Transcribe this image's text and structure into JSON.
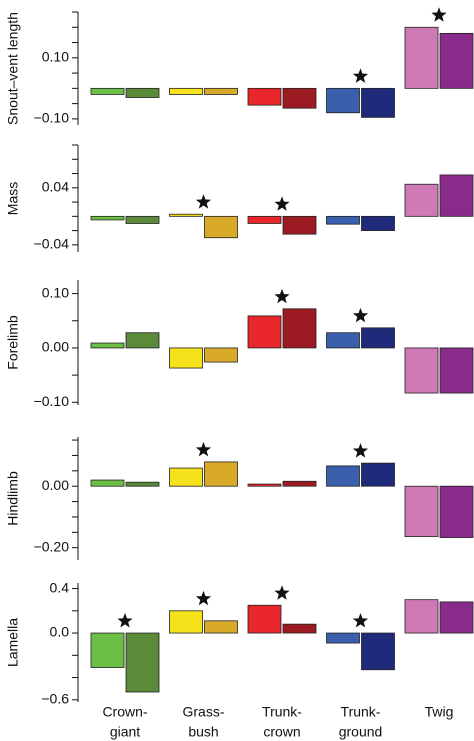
{
  "chart_data": [
    {
      "type": "bar",
      "ylabel": "Snout–vent length",
      "ylim": [
        -0.12,
        0.25
      ],
      "yticks": [
        {
          "value": -0.1,
          "label": "−0.10"
        },
        {
          "value": 0.1,
          "label": "0.10"
        }
      ],
      "yminor": [
        -0.05,
        0,
        0.05,
        0.15,
        0.2,
        0.25
      ],
      "significant": [
        false,
        false,
        false,
        true,
        true
      ],
      "series": [
        {
          "colors": [
            "#6cbf45",
            "#f5e21a",
            "#e8262b",
            "#3a5fad",
            "#cf7ab7"
          ],
          "values": [
            -0.02,
            -0.02,
            -0.055,
            -0.08,
            0.2
          ]
        },
        {
          "colors": [
            "#5a8a3a",
            "#d9a92a",
            "#9c1a22",
            "#1f2a7a",
            "#8a2a8a"
          ],
          "values": [
            -0.03,
            -0.02,
            -0.065,
            -0.095,
            0.18
          ]
        }
      ]
    },
    {
      "type": "bar",
      "ylabel": "Mass",
      "ylim": [
        -0.05,
        0.1
      ],
      "yticks": [
        {
          "value": -0.04,
          "label": "−0.04"
        },
        {
          "value": 0.04,
          "label": "0.04"
        }
      ],
      "yminor": [
        -0.02,
        0,
        0.02,
        0.06,
        0.08,
        0.1
      ],
      "significant": [
        false,
        true,
        true,
        false,
        false
      ],
      "series": [
        {
          "colors": [
            "#6cbf45",
            "#f5e21a",
            "#e8262b",
            "#3a5fad",
            "#cf7ab7"
          ],
          "values": [
            -0.005,
            0.003,
            -0.01,
            -0.011,
            0.045
          ]
        },
        {
          "colors": [
            "#5a8a3a",
            "#d9a92a",
            "#9c1a22",
            "#1f2a7a",
            "#8a2a8a"
          ],
          "values": [
            -0.01,
            -0.03,
            -0.025,
            -0.02,
            0.058
          ]
        }
      ]
    },
    {
      "type": "bar",
      "ylabel": "Forelimb",
      "ylim": [
        -0.105,
        0.125
      ],
      "yticks": [
        {
          "value": -0.1,
          "label": "−0.10"
        },
        {
          "value": 0,
          "label": "0.00"
        },
        {
          "value": 0.1,
          "label": "0.10"
        }
      ],
      "yminor": [
        -0.05,
        0.05
      ],
      "significant": [
        false,
        false,
        true,
        true,
        false
      ],
      "series": [
        {
          "colors": [
            "#6cbf45",
            "#f5e21a",
            "#e8262b",
            "#3a5fad",
            "#cf7ab7"
          ],
          "values": [
            0.009,
            -0.037,
            0.059,
            0.028,
            -0.083
          ]
        },
        {
          "colors": [
            "#5a8a3a",
            "#d9a92a",
            "#9c1a22",
            "#1f2a7a",
            "#8a2a8a"
          ],
          "values": [
            0.028,
            -0.026,
            0.072,
            0.037,
            -0.083
          ]
        }
      ]
    },
    {
      "type": "bar",
      "ylabel": "Hindlimb",
      "ylim": [
        -0.24,
        0.16
      ],
      "yticks": [
        {
          "value": -0.2,
          "label": "−0.20"
        },
        {
          "value": 0,
          "label": "0.00"
        }
      ],
      "yminor": [
        -0.15,
        -0.1,
        -0.05,
        0.05,
        0.1,
        0.15
      ],
      "significant": [
        false,
        true,
        false,
        true,
        false
      ],
      "series": [
        {
          "colors": [
            "#6cbf45",
            "#f5e21a",
            "#e8262b",
            "#3a5fad",
            "#cf7ab7"
          ],
          "values": [
            0.02,
            0.059,
            0.007,
            0.066,
            -0.164
          ]
        },
        {
          "colors": [
            "#5a8a3a",
            "#d9a92a",
            "#9c1a22",
            "#1f2a7a",
            "#8a2a8a"
          ],
          "values": [
            0.013,
            0.079,
            0.016,
            0.075,
            -0.167
          ]
        }
      ]
    },
    {
      "type": "bar",
      "ylabel": "Lamella",
      "ylim": [
        -0.62,
        0.45
      ],
      "yticks": [
        {
          "value": -0.6,
          "label": "−0.6"
        },
        {
          "value": 0,
          "label": "0.0"
        },
        {
          "value": 0.4,
          "label": "0.4"
        }
      ],
      "yminor": [
        -0.4,
        -0.2,
        0.2
      ],
      "significant": [
        true,
        true,
        true,
        true,
        false
      ],
      "categories": [
        [
          "Crown-",
          "giant"
        ],
        [
          "Grass-",
          "bush"
        ],
        [
          "Trunk-",
          "crown"
        ],
        [
          "Trunk-",
          "ground"
        ],
        [
          "Twig"
        ]
      ],
      "series": [
        {
          "colors": [
            "#6cbf45",
            "#f5e21a",
            "#e8262b",
            "#3a5fad",
            "#cf7ab7"
          ],
          "values": [
            -0.31,
            0.2,
            0.25,
            -0.09,
            0.3
          ]
        },
        {
          "colors": [
            "#5a8a3a",
            "#d9a92a",
            "#9c1a22",
            "#1f2a7a",
            "#8a2a8a"
          ],
          "values": [
            -0.53,
            0.11,
            0.08,
            -0.33,
            0.28
          ]
        }
      ]
    }
  ]
}
